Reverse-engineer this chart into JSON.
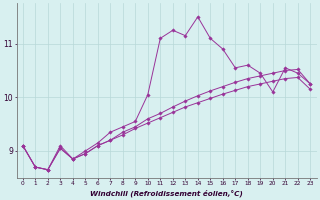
{
  "xlabel": "Windchill (Refroidissement éolien,°C)",
  "x": [
    0,
    1,
    2,
    3,
    4,
    5,
    6,
    7,
    8,
    9,
    10,
    11,
    12,
    13,
    14,
    15,
    16,
    17,
    18,
    19,
    20,
    21,
    22,
    23
  ],
  "line_jagged": [
    9.1,
    8.7,
    8.65,
    9.1,
    8.85,
    9.0,
    9.15,
    9.35,
    9.45,
    9.55,
    10.05,
    11.1,
    11.25,
    11.15,
    11.5,
    11.1,
    10.9,
    10.55,
    10.6,
    10.45,
    10.1,
    10.55,
    10.45,
    10.25
  ],
  "line_trend1": [
    9.1,
    8.7,
    8.65,
    9.05,
    8.85,
    8.95,
    9.1,
    9.2,
    9.35,
    9.45,
    9.6,
    9.7,
    9.82,
    9.93,
    10.03,
    10.12,
    10.2,
    10.28,
    10.35,
    10.4,
    10.45,
    10.5,
    10.52,
    10.25
  ],
  "line_trend2": [
    9.1,
    8.7,
    8.65,
    9.05,
    8.85,
    8.95,
    9.1,
    9.2,
    9.3,
    9.42,
    9.52,
    9.62,
    9.72,
    9.82,
    9.9,
    9.98,
    10.06,
    10.13,
    10.2,
    10.25,
    10.3,
    10.35,
    10.37,
    10.15
  ],
  "line_color": "#993399",
  "bg_color": "#d8f0f0",
  "grid_color": "#b8d8d8",
  "ylim": [
    8.5,
    11.75
  ],
  "yticks": [
    9,
    10,
    11
  ],
  "xticks": [
    0,
    1,
    2,
    3,
    4,
    5,
    6,
    7,
    8,
    9,
    10,
    11,
    12,
    13,
    14,
    15,
    16,
    17,
    18,
    19,
    20,
    21,
    22,
    23
  ]
}
